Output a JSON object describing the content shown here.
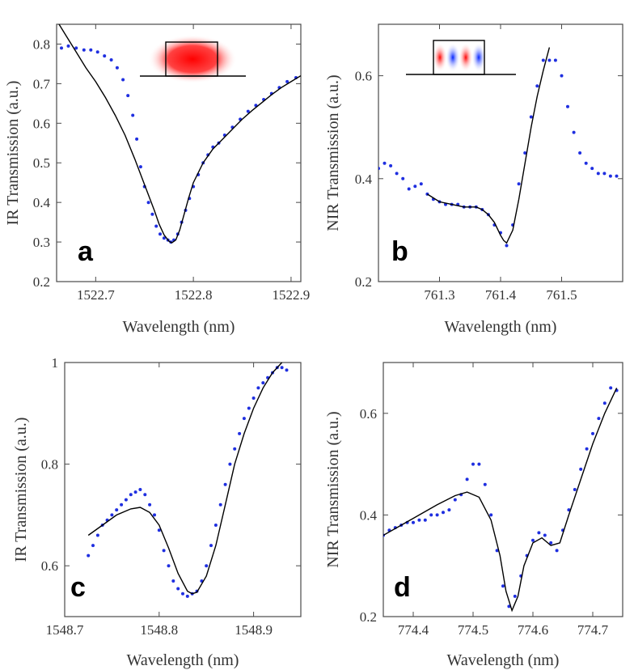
{
  "chart_data": [
    {
      "type": "scatter",
      "panel": "a",
      "xlabel": "Wavelength (nm)",
      "ylabel": "IR Transmission (a.u.)",
      "xlim": [
        1522.66,
        1522.91
      ],
      "ylim": [
        0.2,
        0.85
      ],
      "xticks": [
        "1522.7",
        "1522.8",
        "1522.9"
      ],
      "yticks": [
        "0.2",
        "0.3",
        "0.4",
        "0.5",
        "0.6",
        "0.7",
        "0.8"
      ],
      "inset": "red-mode",
      "series": [
        {
          "name": "measured",
          "style": "dots",
          "x": [
            1522.665,
            1522.672,
            1522.68,
            1522.688,
            1522.695,
            1522.702,
            1522.709,
            1522.716,
            1522.722,
            1522.728,
            1522.733,
            1522.738,
            1522.742,
            1522.746,
            1522.75,
            1522.754,
            1522.758,
            1522.762,
            1522.766,
            1522.77,
            1522.774,
            1522.777,
            1522.78,
            1522.784,
            1522.788,
            1522.792,
            1522.796,
            1522.8,
            1522.805,
            1522.81,
            1522.815,
            1522.82,
            1522.826,
            1522.832,
            1522.84,
            1522.848,
            1522.856,
            1522.864,
            1522.872,
            1522.88,
            1522.888,
            1522.896,
            1522.905
          ],
          "y": [
            0.79,
            0.795,
            0.79,
            0.785,
            0.785,
            0.78,
            0.77,
            0.76,
            0.74,
            0.71,
            0.67,
            0.62,
            0.56,
            0.49,
            0.44,
            0.4,
            0.37,
            0.34,
            0.32,
            0.31,
            0.305,
            0.3,
            0.305,
            0.32,
            0.35,
            0.38,
            0.41,
            0.44,
            0.47,
            0.5,
            0.52,
            0.54,
            0.55,
            0.57,
            0.59,
            0.61,
            0.63,
            0.645,
            0.66,
            0.675,
            0.69,
            0.705,
            0.715
          ]
        },
        {
          "name": "fit",
          "style": "line",
          "x": [
            1522.66,
            1522.67,
            1522.68,
            1522.69,
            1522.7,
            1522.71,
            1522.72,
            1522.73,
            1522.74,
            1522.75,
            1522.76,
            1522.765,
            1522.77,
            1522.775,
            1522.778,
            1522.782,
            1522.786,
            1522.79,
            1522.795,
            1522.8,
            1522.81,
            1522.82,
            1522.83,
            1522.84,
            1522.85,
            1522.86,
            1522.87,
            1522.88,
            1522.89,
            1522.9,
            1522.91
          ],
          "y": [
            0.86,
            0.82,
            0.78,
            0.74,
            0.705,
            0.665,
            0.62,
            0.57,
            0.51,
            0.445,
            0.38,
            0.345,
            0.318,
            0.302,
            0.298,
            0.305,
            0.33,
            0.365,
            0.41,
            0.45,
            0.5,
            0.535,
            0.56,
            0.585,
            0.61,
            0.632,
            0.652,
            0.672,
            0.69,
            0.705,
            0.72
          ]
        }
      ]
    },
    {
      "type": "scatter",
      "panel": "b",
      "xlabel": "Wavelength (nm)",
      "ylabel": "NIR Transmission (a.u.)",
      "xlim": [
        761.2,
        761.6
      ],
      "ylim": [
        0.2,
        0.7
      ],
      "xticks": [
        "761.3",
        "761.4",
        "761.5"
      ],
      "yticks": [
        "0.2",
        "0.4",
        "0.6"
      ],
      "inset": "striped-mode",
      "series": [
        {
          "name": "measured",
          "style": "dots",
          "x": [
            761.2,
            761.21,
            761.22,
            761.23,
            761.24,
            761.25,
            761.26,
            761.27,
            761.28,
            761.29,
            761.3,
            761.31,
            761.32,
            761.33,
            761.34,
            761.35,
            761.36,
            761.37,
            761.38,
            761.39,
            761.4,
            761.41,
            761.42,
            761.43,
            761.44,
            761.45,
            761.46,
            761.47,
            761.48,
            761.49,
            761.5,
            761.51,
            761.52,
            761.53,
            761.54,
            761.55,
            761.56,
            761.57,
            761.58,
            761.59
          ],
          "y": [
            0.42,
            0.43,
            0.425,
            0.41,
            0.4,
            0.38,
            0.385,
            0.39,
            0.37,
            0.36,
            0.355,
            0.35,
            0.35,
            0.35,
            0.345,
            0.345,
            0.345,
            0.34,
            0.33,
            0.31,
            0.295,
            0.27,
            0.31,
            0.39,
            0.45,
            0.52,
            0.58,
            0.63,
            0.63,
            0.63,
            0.6,
            0.54,
            0.49,
            0.45,
            0.43,
            0.42,
            0.41,
            0.41,
            0.405,
            0.405
          ]
        },
        {
          "name": "fit",
          "style": "line",
          "x": [
            761.28,
            761.3,
            761.32,
            761.34,
            761.36,
            761.37,
            761.38,
            761.39,
            761.4,
            761.405,
            761.41,
            761.42,
            761.43,
            761.44,
            761.45,
            761.46,
            761.47,
            761.48
          ],
          "y": [
            0.37,
            0.355,
            0.35,
            0.345,
            0.345,
            0.34,
            0.33,
            0.315,
            0.29,
            0.28,
            0.275,
            0.3,
            0.36,
            0.43,
            0.5,
            0.56,
            0.61,
            0.655
          ]
        }
      ]
    },
    {
      "type": "scatter",
      "panel": "c",
      "xlabel": "Wavelength (nm)",
      "ylabel": "IR Transmission (a.u.)",
      "xlim": [
        1548.7,
        1548.95
      ],
      "ylim": [
        0.5,
        1.0
      ],
      "xticks": [
        "1548.7",
        "1548.8",
        "1548.9"
      ],
      "yticks": [
        "0.6",
        "0.8",
        "1"
      ],
      "series": [
        {
          "name": "measured",
          "style": "dots",
          "x": [
            1548.725,
            1548.73,
            1548.735,
            1548.74,
            1548.745,
            1548.75,
            1548.755,
            1548.76,
            1548.765,
            1548.77,
            1548.775,
            1548.78,
            1548.785,
            1548.79,
            1548.795,
            1548.8,
            1548.805,
            1548.81,
            1548.815,
            1548.82,
            1548.825,
            1548.83,
            1548.835,
            1548.84,
            1548.845,
            1548.85,
            1548.855,
            1548.86,
            1548.865,
            1548.87,
            1548.875,
            1548.88,
            1548.885,
            1548.89,
            1548.895,
            1548.9,
            1548.905,
            1548.91,
            1548.915,
            1548.92,
            1548.925,
            1548.93,
            1548.935
          ],
          "y": [
            0.62,
            0.64,
            0.66,
            0.68,
            0.69,
            0.7,
            0.71,
            0.72,
            0.73,
            0.74,
            0.745,
            0.75,
            0.74,
            0.72,
            0.7,
            0.67,
            0.63,
            0.6,
            0.57,
            0.555,
            0.545,
            0.54,
            0.545,
            0.55,
            0.57,
            0.6,
            0.64,
            0.68,
            0.72,
            0.76,
            0.8,
            0.83,
            0.86,
            0.89,
            0.91,
            0.93,
            0.95,
            0.96,
            0.97,
            0.98,
            0.99,
            0.99,
            0.985
          ]
        },
        {
          "name": "fit",
          "style": "line",
          "x": [
            1548.725,
            1548.74,
            1548.755,
            1548.77,
            1548.78,
            1548.79,
            1548.8,
            1548.81,
            1548.82,
            1548.83,
            1548.835,
            1548.84,
            1548.85,
            1548.86,
            1548.87,
            1548.88,
            1548.89,
            1548.9,
            1548.91,
            1548.92,
            1548.93
          ],
          "y": [
            0.66,
            0.68,
            0.7,
            0.712,
            0.715,
            0.705,
            0.68,
            0.635,
            0.585,
            0.55,
            0.545,
            0.548,
            0.58,
            0.64,
            0.72,
            0.8,
            0.86,
            0.91,
            0.95,
            0.98,
            1.0
          ]
        }
      ]
    },
    {
      "type": "scatter",
      "panel": "d",
      "xlabel": "Wavelength (nm)",
      "ylabel": "NIR Transmission (a.u.)",
      "xlim": [
        774.35,
        774.75
      ],
      "ylim": [
        0.2,
        0.7
      ],
      "xticks": [
        "774.4",
        "774.5",
        "774.6",
        "774.7"
      ],
      "yticks": [
        "0.2",
        "0.4",
        "0.6"
      ],
      "series": [
        {
          "name": "measured",
          "style": "dots",
          "x": [
            774.35,
            774.36,
            774.37,
            774.38,
            774.39,
            774.4,
            774.41,
            774.42,
            774.43,
            774.44,
            774.45,
            774.46,
            774.47,
            774.48,
            774.49,
            774.5,
            774.51,
            774.52,
            774.53,
            774.54,
            774.55,
            774.56,
            774.57,
            774.58,
            774.59,
            774.6,
            774.61,
            774.62,
            774.63,
            774.64,
            774.65,
            774.66,
            774.67,
            774.68,
            774.69,
            774.7,
            774.71,
            774.72,
            774.73,
            774.74
          ],
          "y": [
            0.36,
            0.37,
            0.375,
            0.38,
            0.385,
            0.385,
            0.39,
            0.39,
            0.4,
            0.4,
            0.405,
            0.41,
            0.43,
            0.44,
            0.47,
            0.5,
            0.5,
            0.46,
            0.4,
            0.33,
            0.26,
            0.22,
            0.24,
            0.28,
            0.32,
            0.35,
            0.365,
            0.36,
            0.345,
            0.33,
            0.37,
            0.41,
            0.45,
            0.49,
            0.53,
            0.56,
            0.59,
            0.62,
            0.65,
            0.645
          ]
        },
        {
          "name": "fit",
          "style": "line",
          "x": [
            774.35,
            774.38,
            774.41,
            774.44,
            774.47,
            774.49,
            774.51,
            774.53,
            774.545,
            774.555,
            774.565,
            774.575,
            774.585,
            774.6,
            774.615,
            774.63,
            774.645,
            774.66,
            774.68,
            774.7,
            774.72,
            774.74
          ],
          "y": [
            0.36,
            0.38,
            0.4,
            0.42,
            0.438,
            0.445,
            0.435,
            0.39,
            0.32,
            0.25,
            0.212,
            0.24,
            0.3,
            0.345,
            0.355,
            0.34,
            0.345,
            0.4,
            0.47,
            0.54,
            0.6,
            0.65
          ]
        }
      ]
    }
  ]
}
